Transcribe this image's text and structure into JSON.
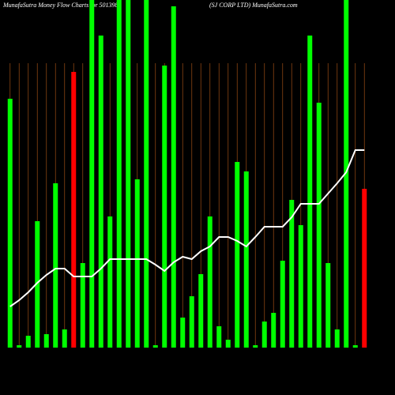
{
  "chart_data": {
    "type": "bar",
    "title": "MunafaSutra  Money Flow  Charts for 501398",
    "subtitle": "(SJ CORP LTD) MunafaSutra.com",
    "categories": [
      null,
      null,
      null,
      null,
      null,
      null,
      null,
      null,
      null,
      null,
      null,
      null,
      null,
      null,
      null,
      null,
      null,
      null,
      null,
      null,
      null,
      null,
      null,
      null,
      null,
      null,
      null,
      null,
      null,
      null,
      null,
      null,
      null,
      null,
      null,
      null,
      null,
      null,
      null,
      null
    ],
    "series": [
      {
        "type": "bar",
        "colors": [
          "#00ff00",
          "#00ff00",
          "#00ff00",
          "#00ff00",
          "#00ff00",
          "#00ff00",
          "#00ff00",
          "#ff0000",
          "#00ff00",
          "#00ff00",
          "#00ff00",
          "#00ff00",
          "#00ff00",
          "#00ff00",
          "#00ff00",
          "#00ff00",
          "#00ff00",
          "#00ff00",
          "#00ff00",
          "#00ff00",
          "#00ff00",
          "#00ff00",
          "#00ff00",
          "#00ff00",
          "#00ff00",
          "#00ff00",
          "#00ff00",
          "#00ff00",
          "#00ff00",
          "#00ff00",
          "#00ff00",
          "#00ff00",
          "#00ff00",
          "#00ff00",
          "#00ff00",
          "#00ff00",
          "#00ff00",
          "#00ff00",
          "#00ff00",
          "#ff0000"
        ],
        "values": [
          315,
          3,
          15,
          160,
          17,
          208,
          23,
          349,
          107,
          440,
          395,
          166,
          440,
          440,
          213,
          440,
          3,
          357,
          432,
          38,
          65,
          93,
          166,
          27,
          10,
          235,
          223,
          3,
          33,
          44,
          110,
          187,
          155,
          395,
          310,
          107,
          23,
          440,
          3,
          201
        ]
      },
      {
        "type": "line",
        "color": "#ffffff",
        "values": [
          52,
          60,
          70,
          82,
          92,
          100,
          100,
          90,
          90,
          90,
          100,
          112,
          112,
          112,
          112,
          112,
          105,
          97,
          108,
          115,
          112,
          122,
          128,
          140,
          140,
          135,
          128,
          140,
          153,
          153,
          153,
          165,
          182,
          182,
          182,
          195,
          208,
          222,
          250,
          250
        ]
      }
    ],
    "ylim": [
      0,
      440
    ]
  }
}
